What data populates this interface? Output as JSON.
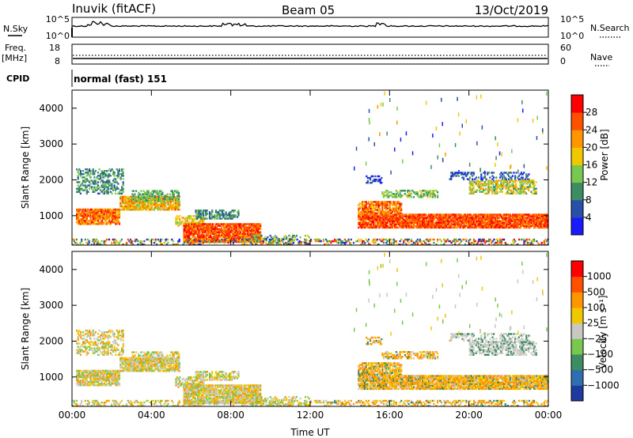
{
  "header": {
    "station": "Inuvik (fitACF)",
    "beam": "Beam 05",
    "date": "13/Oct/2019"
  },
  "params": {
    "nsky_label": "N.Sky",
    "nsky_ticks": [
      "10^5",
      "10^0"
    ],
    "nsearch_label": "N.Search",
    "nsearch_ticks": [
      "10^5",
      "10^0"
    ],
    "freq_label": "Freq.",
    "freq_unit": "[MHz]",
    "freq_ticks": [
      "18",
      "8"
    ],
    "nave_label": "Nave",
    "nave_ticks": [
      "60",
      "0"
    ],
    "cpid_label": "CPID",
    "cpid_text": "normal (fast) 151"
  },
  "chart_data": [
    {
      "type": "heatmap",
      "name": "power",
      "ylabel": "Slant Range [km]",
      "yticks": [
        "1000",
        "2000",
        "3000",
        "4000"
      ],
      "xticks": [
        "00:00",
        "04:00",
        "08:00",
        "12:00",
        "16:00",
        "20:00",
        "00:00"
      ],
      "colorbar_label": "Power [dB]",
      "colorbar_ticks": [
        "4",
        "8",
        "12",
        "16",
        "20",
        "24",
        "28"
      ],
      "colors": [
        "#1a1aff",
        "#2850a8",
        "#3c8c64",
        "#78c850",
        "#f0c800",
        "#ff9600",
        "#ff5000",
        "#ff0000"
      ]
    },
    {
      "type": "heatmap",
      "name": "velocity",
      "ylabel": "Slant Range [km]",
      "yticks": [
        "1000",
        "2000",
        "3000",
        "4000"
      ],
      "xticks": [
        "00:00",
        "04:00",
        "08:00",
        "12:00",
        "16:00",
        "20:00",
        "00:00"
      ],
      "xlabel": "Time UT",
      "colorbar_label": "Velocity [m s⁻¹]",
      "colorbar_ticks": [
        "1000",
        "500",
        "100",
        "25",
        "−25",
        "−100",
        "−500",
        "−1000"
      ],
      "colors": [
        "#1f3a9f",
        "#2f6fb0",
        "#3c8c64",
        "#78c850",
        "#c8c8c0",
        "#f0c800",
        "#ff9600",
        "#ff5000",
        "#ff0000"
      ]
    }
  ]
}
